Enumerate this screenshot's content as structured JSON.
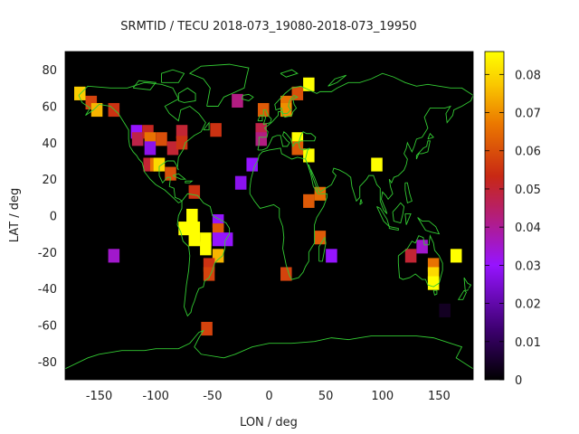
{
  "chart_data": {
    "type": "heatmap",
    "title": "SRMTID / TECU 2018-073_19080-2018-073_19950",
    "xlabel": "LON / deg",
    "ylabel": "LAT / deg",
    "xlim": [
      -180,
      180
    ],
    "ylim": [
      -90,
      90
    ],
    "xticks": [
      -150,
      -100,
      -50,
      0,
      50,
      100,
      150
    ],
    "yticks": [
      -80,
      -60,
      -40,
      -20,
      0,
      20,
      40,
      60,
      80
    ],
    "cell_size_deg": [
      10,
      7.5
    ],
    "colorbar": {
      "min": 0,
      "max": 0.086,
      "ticks": [
        0,
        0.01,
        0.02,
        0.03,
        0.04,
        0.05,
        0.06,
        0.07,
        0.08
      ],
      "tick_labels": [
        "0",
        "0.01",
        "0.02",
        "0.03",
        "0.04",
        "0.05",
        "0.06",
        "0.07",
        "0.08"
      ]
    },
    "background_color": "#000000",
    "coastline_color": "#33cc33",
    "cells": [
      {
        "lon": -167,
        "lat": 67,
        "value": 0.078
      },
      {
        "lon": -157,
        "lat": 62,
        "value": 0.058
      },
      {
        "lon": -152,
        "lat": 58,
        "value": 0.075
      },
      {
        "lon": -137,
        "lat": 58,
        "value": 0.055
      },
      {
        "lon": -117,
        "lat": 46,
        "value": 0.03
      },
      {
        "lon": -116,
        "lat": 42,
        "value": 0.048
      },
      {
        "lon": -107,
        "lat": 46,
        "value": 0.052
      },
      {
        "lon": -105,
        "lat": 42,
        "value": 0.066
      },
      {
        "lon": -105,
        "lat": 37,
        "value": 0.028
      },
      {
        "lon": -95,
        "lat": 42,
        "value": 0.06
      },
      {
        "lon": -85,
        "lat": 37,
        "value": 0.05
      },
      {
        "lon": -77,
        "lat": 46,
        "value": 0.05
      },
      {
        "lon": -77,
        "lat": 40,
        "value": 0.055
      },
      {
        "lon": -106,
        "lat": 28,
        "value": 0.05
      },
      {
        "lon": -100,
        "lat": 28,
        "value": 0.066
      },
      {
        "lon": -97,
        "lat": 28,
        "value": 0.08
      },
      {
        "lon": -87,
        "lat": 23,
        "value": 0.06
      },
      {
        "lon": -137,
        "lat": -22,
        "value": 0.035
      },
      {
        "lon": -66,
        "lat": 13,
        "value": 0.055
      },
      {
        "lon": -47,
        "lat": 47,
        "value": 0.055
      },
      {
        "lon": -28,
        "lat": 63,
        "value": 0.042
      },
      {
        "lon": -15,
        "lat": 28,
        "value": 0.03
      },
      {
        "lon": -25,
        "lat": 18,
        "value": 0.028
      },
      {
        "lon": -68,
        "lat": 0,
        "value": 0.086
      },
      {
        "lon": -75,
        "lat": -7,
        "value": 0.086
      },
      {
        "lon": -66,
        "lat": -7,
        "value": 0.086
      },
      {
        "lon": -66,
        "lat": -13,
        "value": 0.086
      },
      {
        "lon": -56,
        "lat": -13,
        "value": 0.086
      },
      {
        "lon": -56,
        "lat": -18,
        "value": 0.086
      },
      {
        "lon": -45,
        "lat": -3,
        "value": 0.03
      },
      {
        "lon": -45,
        "lat": -8,
        "value": 0.062
      },
      {
        "lon": -45,
        "lat": -13,
        "value": 0.03
      },
      {
        "lon": -37,
        "lat": -13,
        "value": 0.03
      },
      {
        "lon": -45,
        "lat": -22,
        "value": 0.075
      },
      {
        "lon": -53,
        "lat": -27,
        "value": 0.055
      },
      {
        "lon": -53,
        "lat": -32,
        "value": 0.058
      },
      {
        "lon": -55,
        "lat": -62,
        "value": 0.058
      },
      {
        "lon": -5,
        "lat": 58,
        "value": 0.062
      },
      {
        "lon": -7,
        "lat": 47,
        "value": 0.048
      },
      {
        "lon": -7,
        "lat": 42,
        "value": 0.042
      },
      {
        "lon": 15,
        "lat": 62,
        "value": 0.066
      },
      {
        "lon": 15,
        "lat": 58,
        "value": 0.07
      },
      {
        "lon": 25,
        "lat": 67,
        "value": 0.06
      },
      {
        "lon": 35,
        "lat": 72,
        "value": 0.086
      },
      {
        "lon": 25,
        "lat": 42,
        "value": 0.086
      },
      {
        "lon": 25,
        "lat": 37,
        "value": 0.062
      },
      {
        "lon": 35,
        "lat": 33,
        "value": 0.086
      },
      {
        "lon": 45,
        "lat": 12,
        "value": 0.065
      },
      {
        "lon": 35,
        "lat": 8,
        "value": 0.062
      },
      {
        "lon": 45,
        "lat": -12,
        "value": 0.062
      },
      {
        "lon": 15,
        "lat": -32,
        "value": 0.058
      },
      {
        "lon": 55,
        "lat": -22,
        "value": 0.03
      },
      {
        "lon": 95,
        "lat": 28,
        "value": 0.086
      },
      {
        "lon": 125,
        "lat": -22,
        "value": 0.05
      },
      {
        "lon": 135,
        "lat": -17,
        "value": 0.035
      },
      {
        "lon": 145,
        "lat": -27,
        "value": 0.066
      },
      {
        "lon": 145,
        "lat": -32,
        "value": 0.08
      },
      {
        "lon": 145,
        "lat": -37,
        "value": 0.086
      },
      {
        "lon": 165,
        "lat": -22,
        "value": 0.086
      },
      {
        "lon": 155,
        "lat": -52,
        "value": 0.004
      }
    ]
  }
}
